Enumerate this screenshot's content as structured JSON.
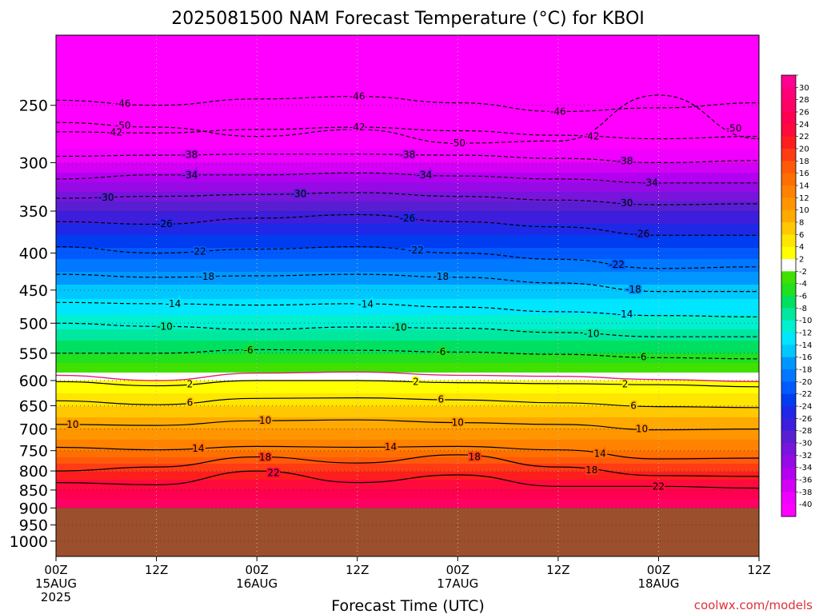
{
  "chart_data": {
    "type": "heatmap",
    "title": "2025081500 NAM Forecast Temperature (°C) for KBOI",
    "xlabel": "Forecast Time (UTC)",
    "ylabel": "",
    "credit": "coolwx.com/models",
    "y_scale": "log-pressure",
    "ylim": [
      1050,
      200
    ],
    "y_ticks": [
      250,
      300,
      350,
      400,
      450,
      500,
      550,
      600,
      650,
      700,
      750,
      800,
      850,
      900,
      950,
      1000
    ],
    "x_range_hours": [
      0,
      84
    ],
    "x_ticks": [
      {
        "hour": 0,
        "line1": "00Z",
        "line2": "15AUG",
        "line3": "2025"
      },
      {
        "hour": 12,
        "line1": "12Z",
        "line2": "",
        "line3": ""
      },
      {
        "hour": 24,
        "line1": "00Z",
        "line2": "16AUG",
        "line3": ""
      },
      {
        "hour": 36,
        "line1": "12Z",
        "line2": "",
        "line3": ""
      },
      {
        "hour": 48,
        "line1": "00Z",
        "line2": "17AUG",
        "line3": ""
      },
      {
        "hour": 60,
        "line1": "12Z",
        "line2": "",
        "line3": ""
      },
      {
        "hour": 72,
        "line1": "00Z",
        "line2": "18AUG",
        "line3": ""
      },
      {
        "hour": 84,
        "line1": "12Z",
        "line2": "",
        "line3": ""
      }
    ],
    "grid": true,
    "ground_below_hpa": 900,
    "ground_color": "#9c4f2c",
    "colorbar": {
      "levels": [
        30,
        28,
        26,
        24,
        22,
        20,
        18,
        16,
        14,
        12,
        10,
        8,
        6,
        4,
        2,
        -2,
        -4,
        -6,
        -8,
        -10,
        -12,
        -14,
        -16,
        -18,
        -20,
        -22,
        -24,
        -26,
        -28,
        -30,
        -32,
        -34,
        -36,
        -38,
        -40
      ],
      "colors": [
        "#ff0090",
        "#ff0078",
        "#ff0064",
        "#ff0050",
        "#ff0a3c",
        "#ff1e1e",
        "#ff3c14",
        "#ff5a0a",
        "#ff6e00",
        "#ff8200",
        "#ff9600",
        "#ffaa00",
        "#ffc800",
        "#ffe600",
        "#ffff00",
        "#ffffff",
        "#40e000",
        "#20e020",
        "#00e060",
        "#00e8a0",
        "#00f0d0",
        "#00e6ff",
        "#00c8ff",
        "#0096ff",
        "#0078ff",
        "#005aff",
        "#003cf0",
        "#1e28e6",
        "#3c1edc",
        "#5a1ed2",
        "#7814dc",
        "#960ae6",
        "#b400f0",
        "#d200f5",
        "#f000ff",
        "#ff00ff"
      ]
    },
    "temperature_profile": [
      {
        "p": 200,
        "t": -56
      },
      {
        "p": 250,
        "t": -46
      },
      {
        "p": 300,
        "t": -38
      },
      {
        "p": 350,
        "t": -28
      },
      {
        "p": 400,
        "t": -21
      },
      {
        "p": 450,
        "t": -15
      },
      {
        "p": 500,
        "t": -11
      },
      {
        "p": 550,
        "t": -6
      },
      {
        "p": 585,
        "t": -2
      },
      {
        "p": 600,
        "t": 2
      },
      {
        "p": 650,
        "t": 6
      },
      {
        "p": 700,
        "t": 10
      },
      {
        "p": 750,
        "t": 14
      },
      {
        "p": 800,
        "t": 20
      },
      {
        "p": 850,
        "t": 24
      },
      {
        "p": 900,
        "t": 28
      }
    ],
    "isotherms": [
      {
        "t": -50,
        "dashed": true,
        "points": [
          [
            0,
            264
          ],
          [
            12,
            268
          ],
          [
            24,
            276
          ],
          [
            36,
            270
          ],
          [
            48,
            282
          ],
          [
            60,
            280
          ],
          [
            72,
            242
          ],
          [
            84,
            278
          ]
        ],
        "labels": [
          [
            8,
            -50
          ],
          [
            48,
            -50
          ],
          [
            81,
            -50
          ]
        ]
      },
      {
        "t": -46,
        "dashed": true,
        "points": [
          [
            0,
            246
          ],
          [
            12,
            250
          ],
          [
            24,
            245
          ],
          [
            36,
            243
          ],
          [
            48,
            248
          ],
          [
            60,
            255
          ],
          [
            72,
            252
          ],
          [
            84,
            248
          ]
        ],
        "labels": [
          [
            8,
            -46
          ],
          [
            36,
            -46
          ],
          [
            60,
            -46
          ]
        ]
      },
      {
        "t": -42,
        "dashed": true,
        "points": [
          [
            0,
            272
          ],
          [
            12,
            273
          ],
          [
            24,
            270
          ],
          [
            36,
            268
          ],
          [
            48,
            271
          ],
          [
            60,
            275
          ],
          [
            72,
            278
          ],
          [
            84,
            276
          ]
        ],
        "labels": [
          [
            7,
            -42
          ],
          [
            36,
            -42
          ],
          [
            64,
            -42
          ]
        ]
      },
      {
        "t": -38,
        "dashed": true,
        "points": [
          [
            0,
            294
          ],
          [
            12,
            293
          ],
          [
            24,
            292
          ],
          [
            36,
            292
          ],
          [
            48,
            293
          ],
          [
            60,
            296
          ],
          [
            72,
            300
          ],
          [
            84,
            298
          ]
        ],
        "labels": [
          [
            16,
            -38
          ],
          [
            42,
            -38
          ],
          [
            68,
            -38
          ]
        ]
      },
      {
        "t": -34,
        "dashed": true,
        "points": [
          [
            0,
            316
          ],
          [
            12,
            312
          ],
          [
            24,
            312
          ],
          [
            36,
            310
          ],
          [
            48,
            313
          ],
          [
            60,
            316
          ],
          [
            72,
            320
          ],
          [
            84,
            320
          ]
        ],
        "labels": [
          [
            16,
            -34
          ],
          [
            44,
            -34
          ],
          [
            71,
            -34
          ]
        ]
      },
      {
        "t": -30,
        "dashed": true,
        "points": [
          [
            0,
            336
          ],
          [
            12,
            334
          ],
          [
            24,
            332
          ],
          [
            36,
            330
          ],
          [
            48,
            334
          ],
          [
            60,
            338
          ],
          [
            72,
            343
          ],
          [
            84,
            342
          ]
        ],
        "labels": [
          [
            6,
            -30
          ],
          [
            29,
            -30
          ],
          [
            68,
            -30
          ]
        ]
      },
      {
        "t": -26,
        "dashed": true,
        "points": [
          [
            0,
            362
          ],
          [
            12,
            365
          ],
          [
            24,
            358
          ],
          [
            36,
            354
          ],
          [
            48,
            362
          ],
          [
            60,
            368
          ],
          [
            72,
            378
          ],
          [
            84,
            378
          ]
        ],
        "labels": [
          [
            13,
            -26
          ],
          [
            42,
            -26
          ],
          [
            70,
            -26
          ]
        ]
      },
      {
        "t": -22,
        "dashed": true,
        "points": [
          [
            0,
            392
          ],
          [
            12,
            400
          ],
          [
            24,
            395
          ],
          [
            36,
            392
          ],
          [
            48,
            400
          ],
          [
            60,
            408
          ],
          [
            72,
            420
          ],
          [
            84,
            418
          ]
        ],
        "labels": [
          [
            17,
            -22
          ],
          [
            43,
            -22
          ],
          [
            67,
            -22
          ]
        ]
      },
      {
        "t": -18,
        "dashed": true,
        "points": [
          [
            0,
            428
          ],
          [
            12,
            432
          ],
          [
            24,
            430
          ],
          [
            36,
            428
          ],
          [
            48,
            432
          ],
          [
            60,
            440
          ],
          [
            72,
            452
          ],
          [
            84,
            452
          ]
        ],
        "labels": [
          [
            18,
            -18
          ],
          [
            46,
            -18
          ],
          [
            69,
            -18
          ]
        ]
      },
      {
        "t": -14,
        "dashed": true,
        "points": [
          [
            0,
            468
          ],
          [
            12,
            470
          ],
          [
            24,
            472
          ],
          [
            36,
            470
          ],
          [
            48,
            475
          ],
          [
            60,
            482
          ],
          [
            72,
            488
          ],
          [
            84,
            490
          ]
        ],
        "labels": [
          [
            14,
            -14
          ],
          [
            37,
            -14
          ],
          [
            68,
            -14
          ]
        ]
      },
      {
        "t": -10,
        "dashed": true,
        "points": [
          [
            0,
            500
          ],
          [
            12,
            505
          ],
          [
            24,
            510
          ],
          [
            36,
            506
          ],
          [
            48,
            508
          ],
          [
            60,
            515
          ],
          [
            72,
            522
          ],
          [
            84,
            522
          ]
        ],
        "labels": [
          [
            13,
            -10
          ],
          [
            41,
            -10
          ],
          [
            64,
            -10
          ]
        ]
      },
      {
        "t": -6,
        "dashed": true,
        "points": [
          [
            0,
            550
          ],
          [
            12,
            550
          ],
          [
            24,
            544
          ],
          [
            36,
            545
          ],
          [
            48,
            548
          ],
          [
            60,
            552
          ],
          [
            72,
            558
          ],
          [
            84,
            560
          ]
        ],
        "labels": [
          [
            23,
            -6
          ],
          [
            46,
            -6
          ],
          [
            70,
            -6
          ]
        ]
      },
      {
        "t": 2,
        "dashed": false,
        "points": [
          [
            0,
            602
          ],
          [
            12,
            610
          ],
          [
            24,
            600
          ],
          [
            36,
            600
          ],
          [
            48,
            604
          ],
          [
            60,
            606
          ],
          [
            72,
            608
          ],
          [
            84,
            612
          ]
        ],
        "labels": [
          [
            16,
            2
          ],
          [
            43,
            2
          ],
          [
            68,
            2
          ]
        ]
      },
      {
        "t": 6,
        "dashed": false,
        "points": [
          [
            0,
            640
          ],
          [
            12,
            648
          ],
          [
            24,
            635
          ],
          [
            36,
            634
          ],
          [
            48,
            638
          ],
          [
            60,
            644
          ],
          [
            72,
            652
          ],
          [
            84,
            654
          ]
        ],
        "labels": [
          [
            16,
            6
          ],
          [
            46,
            6
          ],
          [
            69,
            6
          ]
        ]
      },
      {
        "t": 10,
        "dashed": false,
        "points": [
          [
            0,
            690
          ],
          [
            12,
            692
          ],
          [
            24,
            682
          ],
          [
            36,
            680
          ],
          [
            48,
            686
          ],
          [
            60,
            690
          ],
          [
            72,
            702
          ],
          [
            84,
            700
          ]
        ],
        "labels": [
          [
            2,
            10
          ],
          [
            25,
            10
          ],
          [
            48,
            10
          ],
          [
            70,
            10
          ]
        ]
      },
      {
        "t": 14,
        "dashed": false,
        "points": [
          [
            0,
            742
          ],
          [
            12,
            748
          ],
          [
            24,
            740
          ],
          [
            36,
            742
          ],
          [
            48,
            740
          ],
          [
            60,
            748
          ],
          [
            72,
            770
          ],
          [
            84,
            768
          ]
        ],
        "labels": [
          [
            17,
            14
          ],
          [
            40,
            14
          ],
          [
            65,
            14
          ]
        ]
      },
      {
        "t": 18,
        "dashed": false,
        "points": [
          [
            0,
            800
          ],
          [
            12,
            790
          ],
          [
            24,
            765
          ],
          [
            36,
            780
          ],
          [
            48,
            760
          ],
          [
            60,
            790
          ],
          [
            72,
            812
          ],
          [
            84,
            814
          ]
        ],
        "labels": [
          [
            25,
            18
          ],
          [
            50,
            18
          ],
          [
            64,
            18
          ]
        ]
      },
      {
        "t": 22,
        "dashed": false,
        "points": [
          [
            0,
            830
          ],
          [
            12,
            836
          ],
          [
            24,
            800
          ],
          [
            36,
            830
          ],
          [
            48,
            810
          ],
          [
            60,
            840
          ],
          [
            72,
            840
          ],
          [
            84,
            845
          ]
        ],
        "labels": [
          [
            26,
            22
          ],
          [
            72,
            22
          ]
        ]
      }
    ],
    "freezing_line": {
      "t": 0,
      "color": "#e0207a",
      "points": [
        [
          0,
          590
        ],
        [
          12,
          600
        ],
        [
          24,
          586
        ],
        [
          36,
          584
        ],
        [
          48,
          590
        ],
        [
          60,
          592
        ],
        [
          72,
          598
        ],
        [
          84,
          602
        ]
      ]
    }
  }
}
